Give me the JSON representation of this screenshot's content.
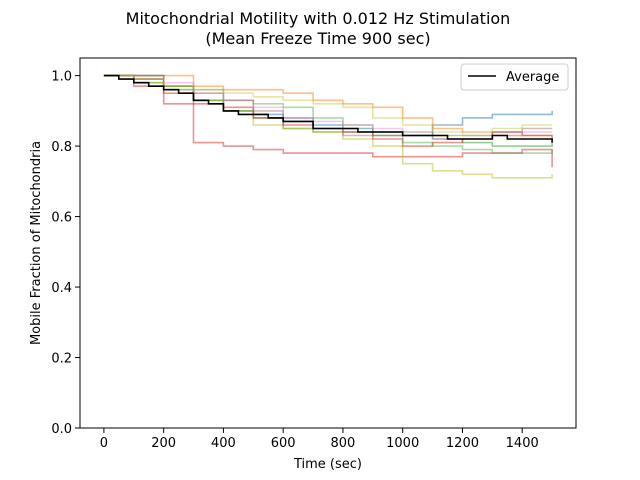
{
  "chart_data": {
    "type": "line",
    "title": "Mitochondrial Motility with 0.012 Hz Stimulation",
    "subtitle": "(Mean Freeze Time 900 sec)",
    "xlabel": "Time (sec)",
    "ylabel": "Mobile Fraction of Mitochondria",
    "xlim": [
      -80,
      1580
    ],
    "ylim": [
      0,
      1.05
    ],
    "x_ticks": [
      "0",
      "200",
      "400",
      "600",
      "800",
      "1000",
      "1200",
      "1400"
    ],
    "y_ticks": [
      "0.0",
      "0.2",
      "0.4",
      "0.6",
      "0.8",
      "1.0"
    ],
    "grid": false,
    "legend": {
      "placement": "top-right",
      "entries": [
        {
          "label": "Average",
          "color": "#000000"
        }
      ]
    },
    "series": [
      {
        "color": "#1f77b4",
        "opacity": 0.5,
        "x": [
          0,
          100,
          200,
          300,
          400,
          500,
          600,
          700,
          800,
          900,
          1000,
          1100,
          1200,
          1300,
          1400,
          1500
        ],
        "y": [
          1.0,
          1.0,
          0.96,
          0.93,
          0.9,
          0.89,
          0.88,
          0.86,
          0.85,
          0.84,
          0.83,
          0.86,
          0.88,
          0.89,
          0.89,
          0.9
        ]
      },
      {
        "color": "#ff7f0e",
        "opacity": 0.5,
        "x": [
          0,
          100,
          200,
          300,
          400,
          500,
          600,
          700,
          800,
          900,
          1000,
          1100,
          1200,
          1300,
          1400,
          1500
        ],
        "y": [
          1.0,
          1.0,
          1.0,
          0.97,
          0.96,
          0.96,
          0.95,
          0.93,
          0.92,
          0.91,
          0.88,
          0.85,
          0.84,
          0.83,
          0.83,
          0.83
        ]
      },
      {
        "color": "#2ca02c",
        "opacity": 0.5,
        "x": [
          0,
          100,
          200,
          300,
          400,
          500,
          600,
          700,
          800,
          900,
          1000,
          1100,
          1200,
          1300,
          1400,
          1500
        ],
        "y": [
          1.0,
          0.99,
          0.97,
          0.93,
          0.9,
          0.88,
          0.85,
          0.84,
          0.84,
          0.83,
          0.83,
          0.82,
          0.81,
          0.8,
          0.8,
          0.81
        ]
      },
      {
        "color": "#d62728",
        "opacity": 0.5,
        "x": [
          0,
          100,
          200,
          300,
          400,
          500,
          600,
          700,
          800,
          900,
          1000,
          1100,
          1200,
          1300,
          1400,
          1500
        ],
        "y": [
          1.0,
          0.97,
          0.92,
          0.81,
          0.8,
          0.79,
          0.78,
          0.78,
          0.78,
          0.77,
          0.77,
          0.77,
          0.78,
          0.78,
          0.79,
          0.74
        ]
      },
      {
        "color": "#bcbd22",
        "opacity": 0.5,
        "x": [
          0,
          100,
          200,
          300,
          400,
          500,
          600,
          700,
          800,
          900,
          1000,
          1100,
          1200,
          1300,
          1400,
          1500
        ],
        "y": [
          1.0,
          0.98,
          0.96,
          0.93,
          0.9,
          0.86,
          0.85,
          0.84,
          0.82,
          0.8,
          0.75,
          0.73,
          0.72,
          0.71,
          0.71,
          0.72
        ]
      },
      {
        "color": "#d62728",
        "opacity": 0.5,
        "x": [
          0,
          100,
          200,
          300,
          400,
          500,
          600,
          700,
          800,
          900,
          1000,
          1100,
          1200,
          1300,
          1400,
          1500
        ],
        "y": [
          1.0,
          0.99,
          0.95,
          0.92,
          0.91,
          0.88,
          0.86,
          0.85,
          0.84,
          0.82,
          0.8,
          0.81,
          0.82,
          0.84,
          0.83,
          0.82
        ]
      },
      {
        "color": "#8c564b",
        "opacity": 0.4,
        "x": [
          0,
          100,
          200,
          300,
          400,
          500,
          600,
          700,
          800,
          900,
          1000,
          1100,
          1200,
          1300,
          1400,
          1500
        ],
        "y": [
          1.0,
          1.0,
          0.97,
          0.95,
          0.93,
          0.9,
          0.87,
          0.85,
          0.83,
          0.83,
          0.84,
          0.83,
          0.83,
          0.84,
          0.85,
          0.85
        ]
      },
      {
        "color": "#2ca02c",
        "opacity": 0.4,
        "x": [
          0,
          100,
          200,
          300,
          400,
          500,
          600,
          700,
          800,
          900,
          1000,
          1100,
          1200,
          1300,
          1400,
          1500
        ],
        "y": [
          1.0,
          0.98,
          0.97,
          0.96,
          0.93,
          0.92,
          0.91,
          0.88,
          0.86,
          0.84,
          0.81,
          0.8,
          0.79,
          0.78,
          0.78,
          0.79
        ]
      },
      {
        "color": "#e377c2",
        "opacity": 0.4,
        "x": [
          0,
          100,
          200,
          300,
          400,
          500,
          600,
          700,
          800,
          900,
          1000,
          1100,
          1200,
          1300,
          1400,
          1500
        ],
        "y": [
          1.0,
          0.99,
          0.98,
          0.95,
          0.93,
          0.91,
          0.88,
          0.87,
          0.86,
          0.85,
          0.83,
          0.82,
          0.82,
          0.83,
          0.84,
          0.84
        ]
      },
      {
        "color": "#bcbd22",
        "opacity": 0.4,
        "x": [
          0,
          100,
          200,
          300,
          400,
          500,
          600,
          700,
          800,
          900,
          1000,
          1100,
          1200,
          1300,
          1400,
          1500
        ],
        "y": [
          1.0,
          0.99,
          0.97,
          0.96,
          0.95,
          0.94,
          0.93,
          0.92,
          0.91,
          0.88,
          0.86,
          0.84,
          0.83,
          0.85,
          0.86,
          0.86
        ]
      },
      {
        "color": "#000000",
        "opacity": 1.0,
        "name": "Average",
        "x": [
          0,
          50,
          100,
          150,
          200,
          250,
          300,
          350,
          400,
          450,
          500,
          550,
          600,
          650,
          700,
          750,
          800,
          850,
          900,
          950,
          1000,
          1050,
          1100,
          1150,
          1200,
          1250,
          1300,
          1350,
          1400,
          1450,
          1500
        ],
        "y": [
          1.0,
          0.99,
          0.98,
          0.97,
          0.96,
          0.95,
          0.93,
          0.92,
          0.9,
          0.89,
          0.89,
          0.88,
          0.87,
          0.87,
          0.85,
          0.85,
          0.85,
          0.84,
          0.84,
          0.84,
          0.83,
          0.83,
          0.83,
          0.82,
          0.82,
          0.82,
          0.83,
          0.82,
          0.82,
          0.82,
          0.81
        ]
      }
    ]
  }
}
